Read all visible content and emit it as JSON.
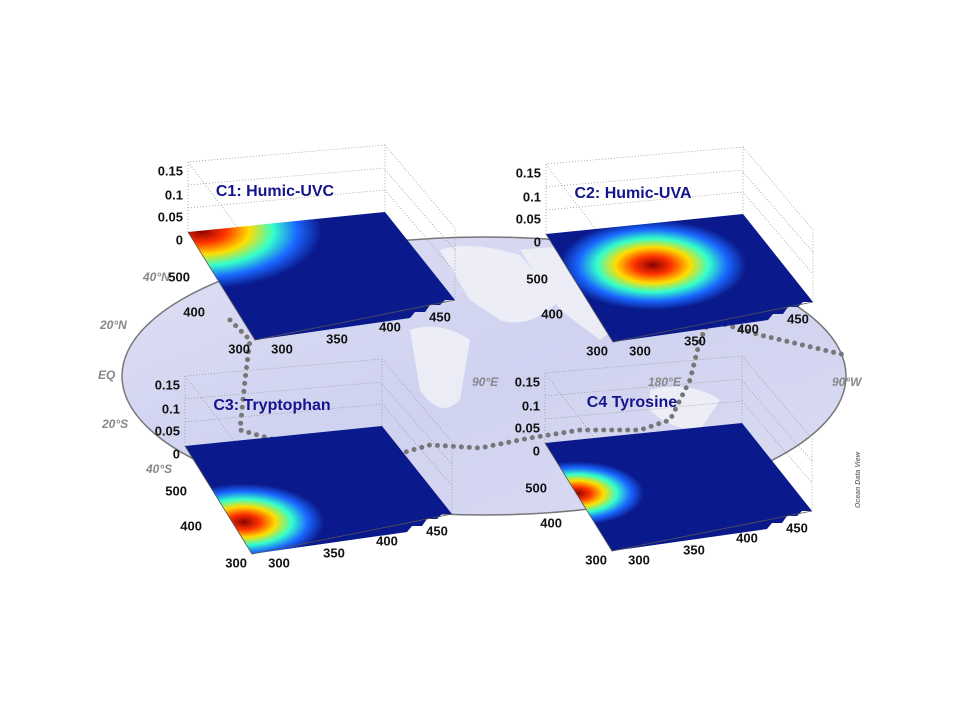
{
  "map": {
    "lat_labels": [
      "40°N",
      "20°N",
      "EQ",
      "20°S",
      "40°S"
    ],
    "lon_labels": [
      "90°E",
      "180°E",
      "90°W"
    ],
    "credit": "Ocean Data View"
  },
  "panels": [
    {
      "title": "C1: Humic-UVC",
      "z_ticks": [
        "0.15",
        "0.1",
        "0.05",
        "0"
      ],
      "y_ticks": [
        "500",
        "400",
        "300"
      ],
      "x_ticks": [
        "300",
        "350",
        "400",
        "450"
      ]
    },
    {
      "title": "C2: Humic-UVA",
      "z_ticks": [
        "0.15",
        "0.1",
        "0.05",
        "0"
      ],
      "y_ticks": [
        "500",
        "400",
        "300"
      ],
      "x_ticks": [
        "300",
        "350",
        "400",
        "450"
      ]
    },
    {
      "title": "C3: Tryptophan",
      "z_ticks": [
        "0.15",
        "0.1",
        "0.05",
        "0"
      ],
      "y_ticks": [
        "500",
        "400",
        "300"
      ],
      "x_ticks": [
        "300",
        "350",
        "400",
        "450"
      ]
    },
    {
      "title": "C4  Tyrosine",
      "z_ticks": [
        "0.15",
        "0.1",
        "0.05",
        "0"
      ],
      "y_ticks": [
        "500",
        "400",
        "300"
      ],
      "x_ticks": [
        "300",
        "350",
        "400",
        "450"
      ]
    }
  ]
}
